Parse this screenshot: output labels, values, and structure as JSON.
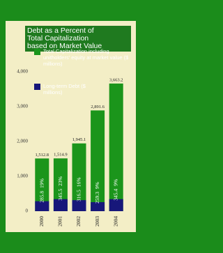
{
  "chart_data": {
    "type": "bar",
    "title_lines": [
      "Debt as a Percent of",
      "Total Capitalization",
      "based on Market Value"
    ],
    "categories": [
      "2000",
      "2001",
      "2002",
      "2003",
      "2004"
    ],
    "series": [
      {
        "name": "Total Capitalization including unitholders' equity at market value ($ millions)",
        "color": "#1b951b",
        "values": [
          1512.8,
          1514.9,
          1945.1,
          2891.6,
          3663.2
        ],
        "value_labels": [
          "1,512.8",
          "1,514.9",
          "1,945.1",
          "2,891.6",
          "3,663.2"
        ]
      },
      {
        "name": "Long-term Debt ($ millions)",
        "color": "#17177a",
        "values": [
          285.8,
          345.5,
          316.5,
          259.3,
          345.4
        ]
      }
    ],
    "debt_percent_labels": [
      "19%",
      "23%",
      "16%",
      "9%",
      "9%"
    ],
    "ylim": [
      0,
      4000
    ],
    "yticks": [
      0,
      {
        "value": 1000,
        "label": "1,000"
      },
      {
        "value": 2000,
        "label": "2,000"
      },
      {
        "value": 3000,
        "label": "3,000"
      },
      {
        "value": 4000,
        "label": "4,000"
      }
    ]
  }
}
